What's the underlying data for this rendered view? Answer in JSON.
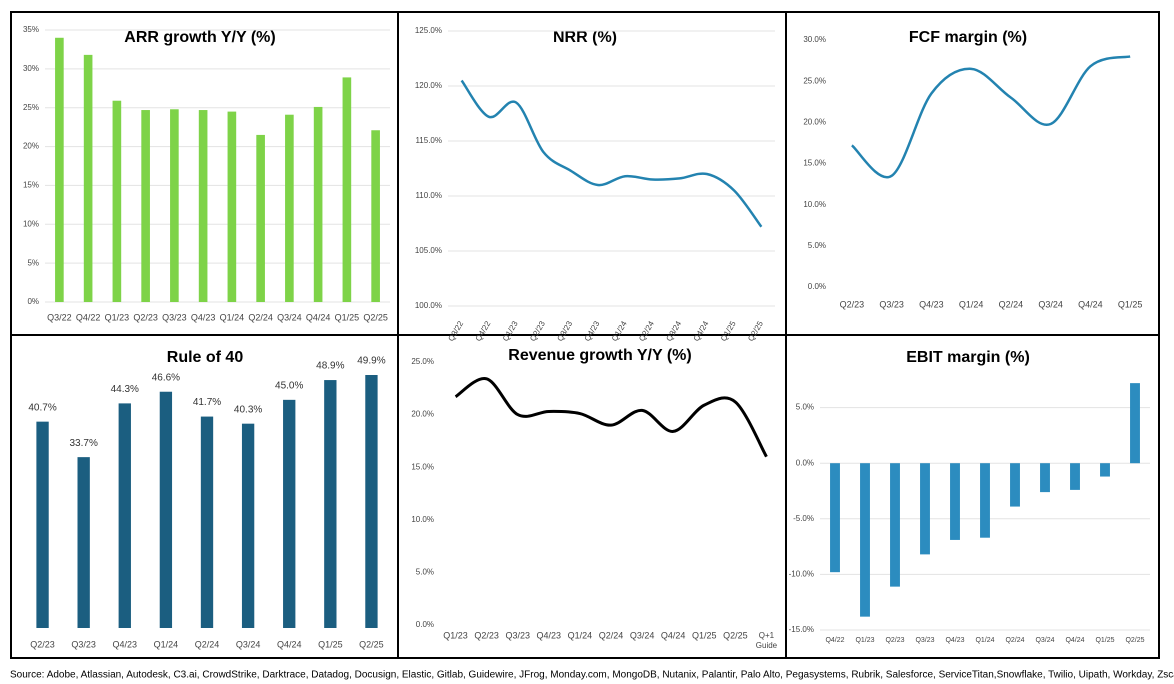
{
  "chart_data": [
    {
      "type": "bar",
      "title": "ARR growth Y/Y (%)",
      "color": "#7ed348",
      "grid": true,
      "categories": [
        "Q3/22",
        "Q4/22",
        "Q1/23",
        "Q2/23",
        "Q3/23",
        "Q4/23",
        "Q1/24",
        "Q2/24",
        "Q3/24",
        "Q4/24",
        "Q1/25",
        "Q2/25"
      ],
      "values": [
        34,
        31.8,
        25.9,
        24.7,
        24.8,
        24.7,
        24.5,
        21.5,
        24.1,
        25.1,
        28.9,
        22.1
      ],
      "ylim": [
        0,
        35
      ],
      "yticks": [
        {
          "value": 0,
          "label": "0%"
        },
        {
          "value": 5,
          "label": "5%"
        },
        {
          "value": 10,
          "label": "10%"
        },
        {
          "value": 15,
          "label": "15%"
        },
        {
          "value": 20,
          "label": "20%"
        },
        {
          "value": 25,
          "label": "25%"
        },
        {
          "value": 30,
          "label": "30%"
        },
        {
          "value": 35,
          "label": "35%"
        }
      ]
    },
    {
      "type": "line",
      "title": "NRR (%)",
      "color": "#2383b0",
      "grid": true,
      "rotate_x_labels": true,
      "categories": [
        "Q3/22",
        "Q4/22",
        "Q1/23",
        "Q2/23",
        "Q3/23",
        "Q4/23",
        "Q1/24",
        "Q2/24",
        "Q3/24",
        "Q4/24",
        "Q1/25",
        "Q2/25"
      ],
      "values": [
        120.5,
        117.2,
        118.5,
        114,
        112.3,
        111,
        111.8,
        111.5,
        111.6,
        112,
        110.5,
        107.2
      ],
      "ylim": [
        100,
        125
      ],
      "yticks": [
        {
          "value": 100,
          "label": "100.0%"
        },
        {
          "value": 105,
          "label": "105.0%"
        },
        {
          "value": 110,
          "label": "110.0%"
        },
        {
          "value": 115,
          "label": "115.0%"
        },
        {
          "value": 120,
          "label": "120.0%"
        },
        {
          "value": 125,
          "label": "125.0%"
        }
      ]
    },
    {
      "type": "line",
      "title": "FCF margin (%)",
      "color": "#2383b0",
      "grid": false,
      "categories": [
        "Q2/23",
        "Q3/23",
        "Q4/23",
        "Q1/24",
        "Q2/24",
        "Q3/24",
        "Q4/24",
        "Q1/25"
      ],
      "values": [
        17.2,
        13.5,
        23.5,
        26.5,
        23,
        19.8,
        26.8,
        28
      ],
      "ylim": [
        0,
        30
      ],
      "yticks": [
        {
          "value": 0,
          "label": "0.0%"
        },
        {
          "value": 5,
          "label": "5.0%"
        },
        {
          "value": 10,
          "label": "10.0%"
        },
        {
          "value": 15,
          "label": "15.0%"
        },
        {
          "value": 20,
          "label": "20.0%"
        },
        {
          "value": 25,
          "label": "25.0%"
        },
        {
          "value": 30,
          "label": "30.0%"
        }
      ]
    },
    {
      "type": "bar",
      "title": "Rule of 40",
      "color": "#1b5e80",
      "grid": false,
      "categories": [
        "Q2/23",
        "Q3/23",
        "Q4/23",
        "Q1/24",
        "Q2/24",
        "Q3/24",
        "Q4/24",
        "Q1/25",
        "Q2/25"
      ],
      "values": [
        40.7,
        33.7,
        44.3,
        46.6,
        41.7,
        40.3,
        45.0,
        48.9,
        49.9
      ],
      "value_labels": [
        "40.7%",
        "33.7%",
        "44.3%",
        "46.6%",
        "41.7%",
        "40.3%",
        "45.0%",
        "48.9%",
        "49.9%"
      ]
    },
    {
      "type": "line",
      "title": "Revenue growth Y/Y (%)",
      "color": "#000000",
      "grid": false,
      "categories": [
        "Q1/23",
        "Q2/23",
        "Q3/23",
        "Q4/23",
        "Q1/24",
        "Q2/24",
        "Q3/24",
        "Q4/24",
        "Q1/25",
        "Q2/25",
        "Q+1 Guide"
      ],
      "values": [
        21.7,
        23.4,
        20.0,
        20.3,
        20.1,
        19.0,
        20.4,
        18.4,
        20.9,
        21.2,
        16.0
      ],
      "ylim": [
        0,
        25
      ],
      "yticks": [
        {
          "value": 0,
          "label": "0.0%"
        },
        {
          "value": 5,
          "label": "5.0%"
        },
        {
          "value": 10,
          "label": "10.0%"
        },
        {
          "value": 15,
          "label": "15.0%"
        },
        {
          "value": 20,
          "label": "20.0%"
        },
        {
          "value": 25,
          "label": "25.0%"
        }
      ]
    },
    {
      "type": "bar",
      "title": "EBIT margin (%)",
      "color": "#2c8cbf",
      "grid": true,
      "categories": [
        "Q4/22",
        "Q1/23",
        "Q2/23",
        "Q3/23",
        "Q4/23",
        "Q1/24",
        "Q2/24",
        "Q3/24",
        "Q4/24",
        "Q1/25",
        "Q2/25"
      ],
      "values": [
        -9.8,
        -13.8,
        -11.1,
        -8.2,
        -6.9,
        -6.7,
        -3.9,
        -2.6,
        -2.4,
        -1.2,
        7.2
      ],
      "ylim": [
        -15,
        10
      ],
      "yticks": [
        {
          "value": -15,
          "label": "-15.0%"
        },
        {
          "value": -10,
          "label": "-10.0%"
        },
        {
          "value": -5,
          "label": "-5.0%"
        },
        {
          "value": 0,
          "label": "0.0%"
        },
        {
          "value": 5,
          "label": "5.0%"
        }
      ]
    }
  ],
  "source": "Source: Adobe, Atlassian, Autodesk, C3.ai, CrowdStrike, Darktrace, Datadog, Docusign, Elastic, Gitlab, Guidewire, JFrog, Monday.com, MongoDB, Nutanix, Palantir, Palo Alto, Pegasystems, Rubrik, Salesforce, ServiceTitan,Snowflake, Twilio, Uipath, Workday, Zscaler"
}
